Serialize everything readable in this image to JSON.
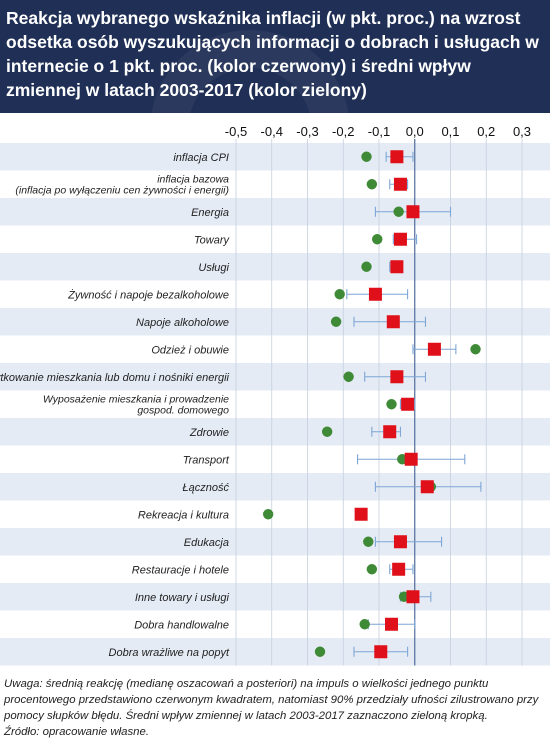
{
  "title": "Reakcja wybranego wskaźnika inflacji (w pkt. proc.) na wzrost odsetka osób wyszukujących informacji o dobrach i usługach w internecie o 1 pkt. proc. (kolor czerwony) i średni wpływ zmiennej w latach 2003-2017 (kolor zielony)",
  "note": "Uwaga: średnią reakcję (medianę oszacowań a posteriori) na impuls o wielkości jednego punktu procentowego przedstawiono czerwonym kwadratem, natomiast 90% przedziały ufności zilustrowano przy pomocy słupków błędu. Średni wpływ zmiennej w latach 2003-2017 zaznaczono zieloną kropką.",
  "source": "Źródło: opracowanie własne.",
  "colors": {
    "header_bg": "#1f2f55",
    "stripe": "#e4ebf5",
    "median": "#e0101a",
    "mean": "#3f8a36",
    "errorbar": "#7ea6d6",
    "zero_line": "#4f6d9b"
  },
  "chart_data": {
    "type": "scatter",
    "xlim": [
      -0.5,
      0.3
    ],
    "ticks": [
      -0.5,
      -0.4,
      -0.3,
      -0.2,
      -0.1,
      0.0,
      0.1,
      0.2,
      0.3
    ],
    "tick_labels": [
      "-0,5",
      "-0,4",
      "-0,3",
      "-0,2",
      "-0,1",
      "0,0",
      "0,1",
      "0,2",
      "0,3"
    ],
    "grid": "vertical",
    "stripes": true,
    "categories": [
      [
        "inflacja CPI"
      ],
      [
        "inflacja bazowa",
        "(inflacja po wyłączeniu cen żywności i energii)"
      ],
      [
        "Energia"
      ],
      [
        "Towary"
      ],
      [
        "Usługi"
      ],
      [
        "Żywność i napoje bezalkoholowe"
      ],
      [
        "Napoje alkoholowe"
      ],
      [
        "Odzież i obuwie"
      ],
      [
        "Użytkowanie mieszkania lub domu i nośniki energii"
      ],
      [
        "Wyposażenie mieszkania i prowadzenie",
        "gospod. domowego"
      ],
      [
        "Zdrowie"
      ],
      [
        "Transport"
      ],
      [
        "Łączność"
      ],
      [
        "Rekreacja i kultura"
      ],
      [
        "Edukacja"
      ],
      [
        "Restauracje i hotele"
      ],
      [
        "Inne towary i usługi"
      ],
      [
        "Dobra handlowalne"
      ],
      [
        "Dobra wrażliwe na popyt"
      ]
    ],
    "median": [
      -0.05,
      -0.04,
      -0.005,
      -0.04,
      -0.05,
      -0.11,
      -0.06,
      0.055,
      -0.05,
      -0.02,
      -0.07,
      -0.01,
      0.035,
      -0.15,
      -0.04,
      -0.045,
      -0.005,
      -0.065,
      -0.095
    ],
    "ci_low": [
      -0.08,
      -0.07,
      -0.11,
      -0.06,
      -0.07,
      -0.19,
      -0.17,
      -0.005,
      -0.14,
      -0.04,
      -0.12,
      -0.16,
      -0.11,
      -0.16,
      -0.11,
      -0.07,
      -0.04,
      -0.13,
      -0.17
    ],
    "ci_high": [
      -0.005,
      -0.02,
      0.1,
      0.005,
      -0.04,
      -0.02,
      0.03,
      0.115,
      0.03,
      0.0,
      -0.04,
      0.14,
      0.185,
      -0.14,
      0.075,
      -0.005,
      0.045,
      0.0,
      -0.02
    ],
    "mean": [
      -0.135,
      -0.12,
      -0.045,
      -0.105,
      -0.135,
      -0.21,
      -0.22,
      0.17,
      -0.185,
      -0.065,
      -0.245,
      -0.035,
      0.045,
      -0.41,
      -0.13,
      -0.12,
      -0.03,
      -0.14,
      -0.265
    ]
  }
}
